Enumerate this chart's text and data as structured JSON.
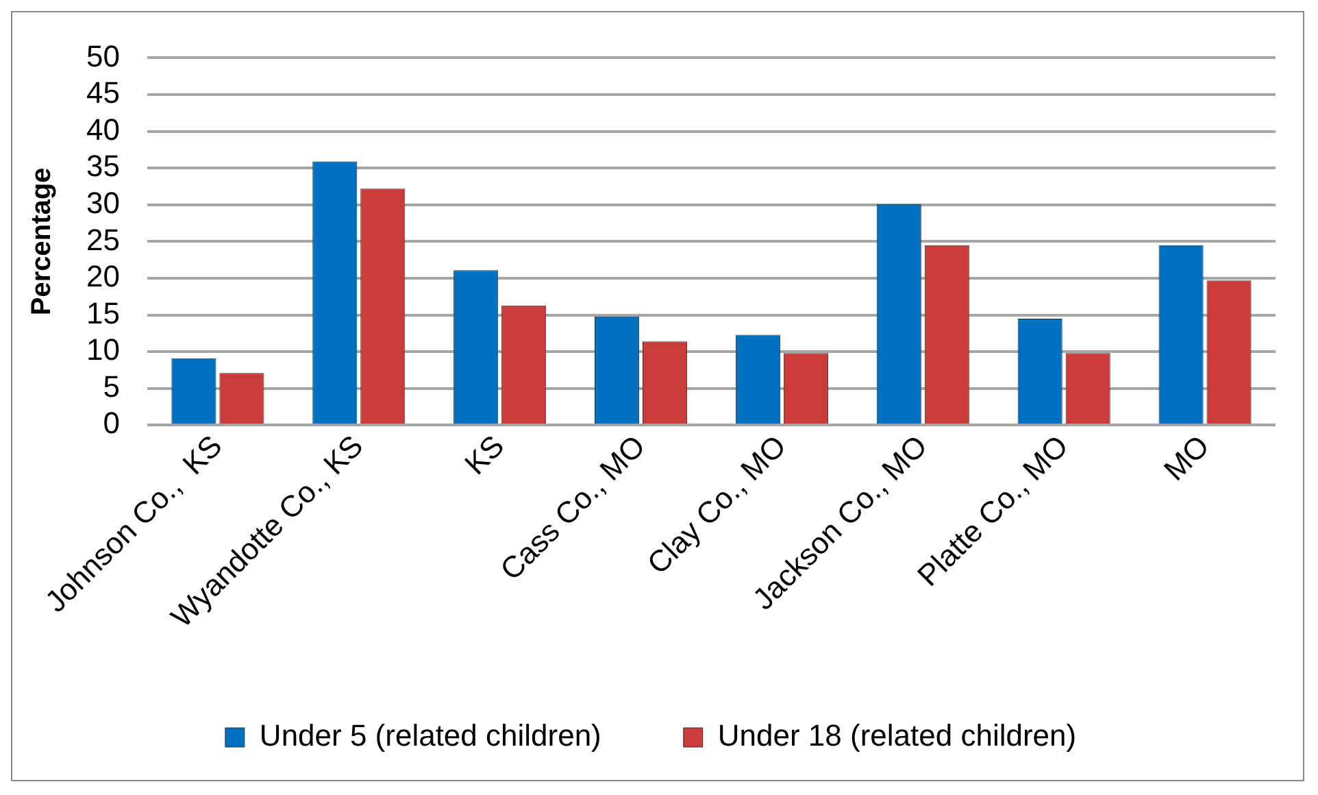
{
  "chart_data": {
    "type": "bar",
    "ylabel": "Percentage",
    "categories": [
      "Johnson Co.,  KS",
      "Wyandotte Co., KS",
      "KS",
      "Cass Co., MO",
      "Clay Co., MO",
      "Jackson Co., MO",
      "Platte Co., MO",
      "MO"
    ],
    "series": [
      {
        "name": "Under 5 (related children)",
        "color": "#0070c0",
        "values": [
          9.1,
          35.9,
          21.1,
          14.8,
          12.3,
          30.1,
          14.5,
          24.5
        ]
      },
      {
        "name": "Under 18 (related children)",
        "color": "#cc3b3b",
        "values": [
          7.1,
          32.2,
          16.3,
          11.4,
          9.8,
          24.5,
          9.8,
          19.7
        ]
      }
    ],
    "ylim": [
      0,
      50
    ],
    "yticks": [
      0,
      5,
      10,
      15,
      20,
      25,
      30,
      35,
      40,
      45,
      50
    ],
    "grid": "y",
    "legend": "bottom"
  }
}
